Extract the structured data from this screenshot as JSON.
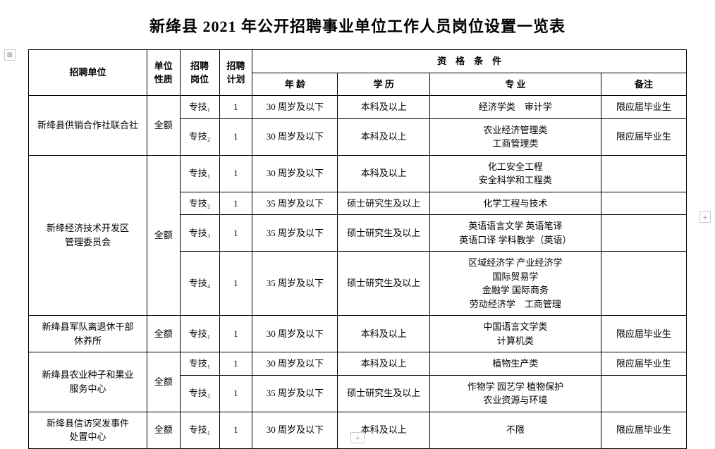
{
  "title": "新绛县 2021 年公开招聘事业单位工作人员岗位设置一览表",
  "headers": {
    "unit": "招聘单位",
    "nature": "单位\n性质",
    "position": "招聘\n岗位",
    "plan": "招聘\n计划",
    "qualification": "资　格　条　件",
    "age": "年 龄",
    "education": "学 历",
    "major": "专 业",
    "note": "备注"
  },
  "groups": [
    {
      "unit": "新绛县供销合作社联合社",
      "nature": "全额",
      "rows": [
        {
          "position": "专技₁",
          "plan": "1",
          "age": "30 周岁及以下",
          "edu": "本科及以上",
          "major": "经济学类　审计学",
          "note": "限应届毕业生"
        },
        {
          "position": "专技₂",
          "plan": "1",
          "age": "30 周岁及以下",
          "edu": "本科及以上",
          "major": "农业经济管理类\n工商管理类",
          "note": "限应届毕业生"
        }
      ]
    },
    {
      "unit": "新绛经济技术开发区\n管理委员会",
      "nature": "全额",
      "rows": [
        {
          "position": "专技₁",
          "plan": "1",
          "age": "30 周岁及以下",
          "edu": "本科及以上",
          "major": "化工安全工程\n安全科学和工程类",
          "note": ""
        },
        {
          "position": "专技₂",
          "plan": "1",
          "age": "35 周岁及以下",
          "edu": "硕士研究生及以上",
          "major": "化学工程与技术",
          "note": ""
        },
        {
          "position": "专技₃",
          "plan": "1",
          "age": "35 周岁及以下",
          "edu": "硕士研究生及以上",
          "major": "英语语言文学 英语笔译\n英语口译 学科教学（英语）",
          "note": ""
        },
        {
          "position": "专技₄",
          "plan": "1",
          "age": "35 周岁及以下",
          "edu": "硕士研究生及以上",
          "major": "区域经济学 产业经济学\n国际贸易学\n金融学 国际商务\n劳动经济学　工商管理",
          "note": ""
        }
      ]
    },
    {
      "unit": "新绛县军队离退休干部\n休养所",
      "nature": "全额",
      "rows": [
        {
          "position": "专技₁",
          "plan": "1",
          "age": "30 周岁及以下",
          "edu": "本科及以上",
          "major": "中国语言文学类\n计算机类",
          "note": "限应届毕业生"
        }
      ]
    },
    {
      "unit": "新绛县农业种子和果业\n服务中心",
      "nature": "全额",
      "rows": [
        {
          "position": "专技₁",
          "plan": "1",
          "age": "30 周岁及以下",
          "edu": "本科及以上",
          "major": "植物生产类",
          "note": "限应届毕业生"
        },
        {
          "position": "专技₂",
          "plan": "1",
          "age": "35 周岁及以下",
          "edu": "硕士研究生及以上",
          "major": "作物学 园艺学 植物保护\n农业资源与环境",
          "note": ""
        }
      ]
    },
    {
      "unit": "新绛县信访突发事件\n处置中心",
      "nature": "全额",
      "rows": [
        {
          "position": "专技₁",
          "plan": "1",
          "age": "30 周岁及以下",
          "edu": "本科及以上",
          "major": "不限",
          "note": "限应届毕业生"
        }
      ]
    }
  ],
  "pageControl": "+",
  "sideLeft": "⊞",
  "sideRight": "+"
}
